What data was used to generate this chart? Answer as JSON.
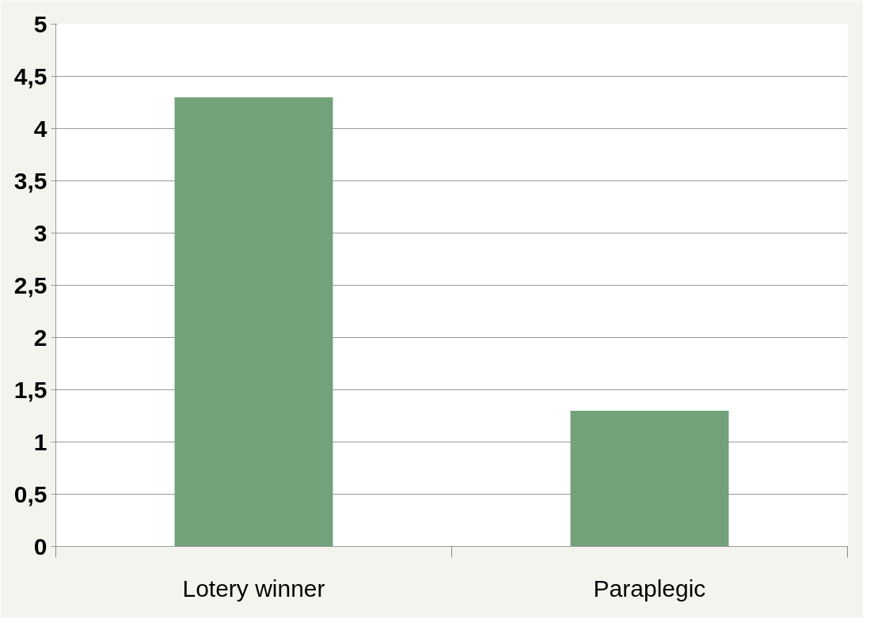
{
  "chart_data": {
    "type": "bar",
    "categories": [
      "Lotery winner",
      "Paraplegic"
    ],
    "values": [
      4.3,
      1.3
    ],
    "color": "#72a27a",
    "ylim": [
      0,
      5
    ],
    "yticks": [
      0,
      {
        "value": 0.5,
        "label": "0,5"
      },
      1,
      {
        "value": 1.5,
        "label": "1,5"
      },
      2,
      {
        "value": 2.5,
        "label": "2,5"
      },
      3,
      {
        "value": 3.5,
        "label": "3,5"
      },
      4,
      {
        "value": 4.5,
        "label": "4,5"
      },
      5
    ],
    "grid": "y"
  }
}
